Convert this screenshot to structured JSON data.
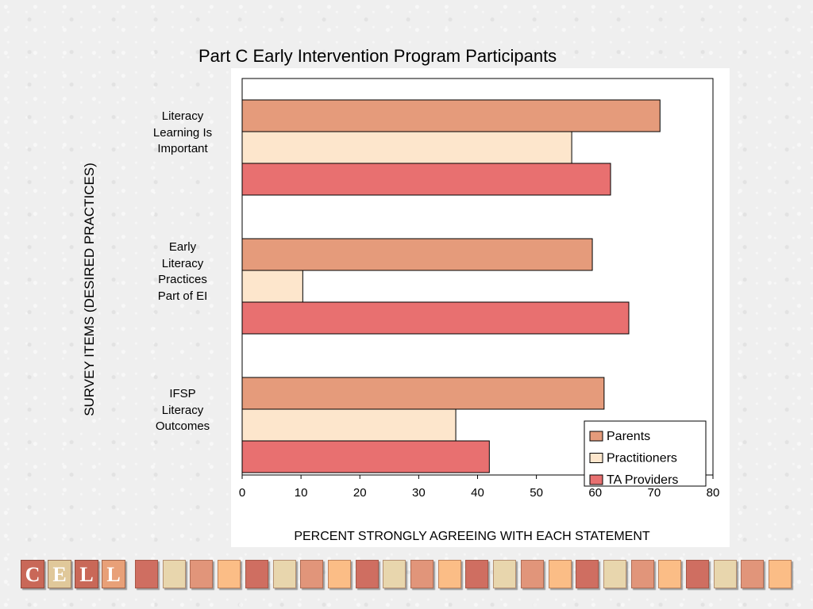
{
  "chart_data": {
    "type": "bar",
    "orientation": "horizontal",
    "title": "Part C Early Intervention Program Participants",
    "xlabel": "PERCENT STRONGLY AGREEING WITH EACH STATEMENT",
    "ylabel": "SURVEY ITEMS (DESIRED PRACTICES)",
    "xlim": [
      0,
      80
    ],
    "xticks": [
      "0",
      "10",
      "20",
      "30",
      "40",
      "50",
      "60",
      "70",
      "80"
    ],
    "categories": [
      [
        "Literacy",
        "Learning Is",
        "Important"
      ],
      [
        "Early",
        "Literacy",
        "Practices",
        "Part of EI"
      ],
      [
        "IFSP",
        "Literacy",
        "Outcomes"
      ]
    ],
    "series": [
      {
        "name": "Parents",
        "color": "#e59b7b",
        "values": [
          71,
          59.5,
          61.5
        ]
      },
      {
        "name": "Practitioners",
        "color": "#fde6cc",
        "values": [
          56,
          10.3,
          36.3
        ]
      },
      {
        "name": "TA Providers",
        "color": "#e87070",
        "values": [
          62.6,
          65.7,
          42
        ]
      }
    ],
    "grid": false,
    "legend_position": "bottom-right"
  },
  "footer": {
    "logo_letters": [
      "C",
      "E",
      "L",
      "L"
    ],
    "logo_colors": [
      "#c96858",
      "#e0c89a",
      "#c96858",
      "#e8a078"
    ],
    "tile_colors": [
      "#cf6e61",
      "#e8d6ad",
      "#e1957a",
      "#fbbd86"
    ]
  }
}
